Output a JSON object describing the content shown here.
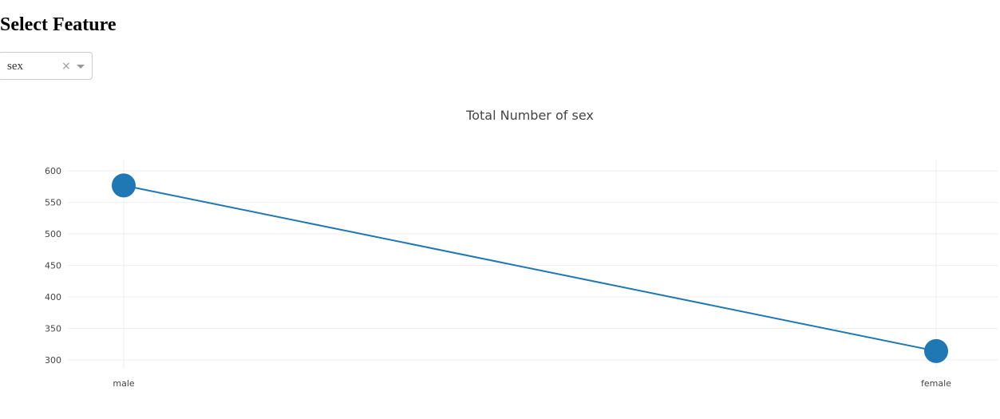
{
  "heading": "Select Feature",
  "dropdown": {
    "value": "sex",
    "clear_symbol": "×"
  },
  "chart_data": {
    "type": "line",
    "title": "Total Number of sex",
    "categories": [
      "male",
      "female"
    ],
    "values": [
      577,
      314
    ],
    "xlabel": "",
    "ylabel": "",
    "yticks": [
      300,
      350,
      400,
      450,
      500,
      550,
      600
    ],
    "ylim": [
      286,
      618
    ],
    "grid": true,
    "marker": "circle",
    "color": "#1f77b4",
    "gridcolor": "#eeeeee"
  }
}
